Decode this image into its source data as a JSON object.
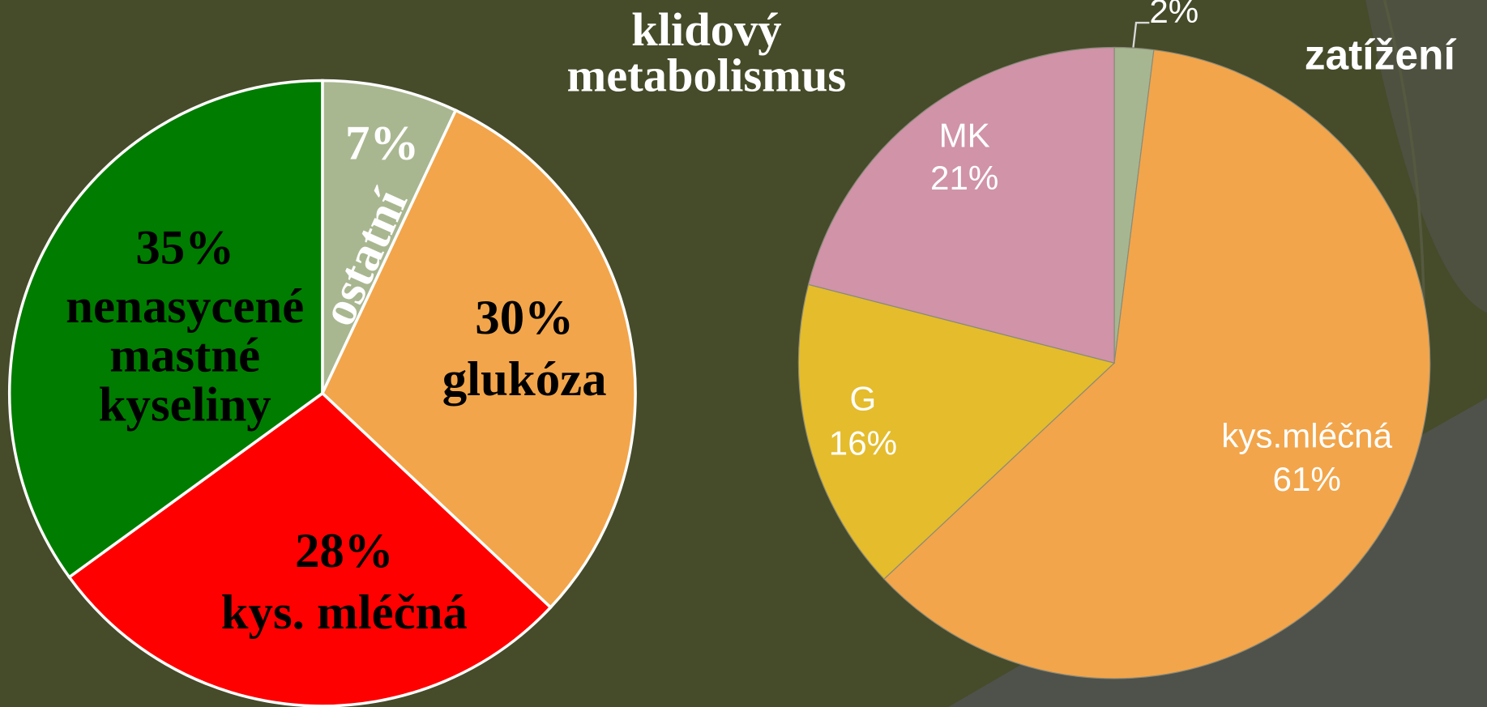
{
  "chart_data": [
    {
      "type": "pie",
      "title": "klidový metabolismus",
      "categories": [
        "ostatní",
        "glukóza",
        "kys. mléčná",
        "nenasycené mastné kyseliny"
      ],
      "values": [
        7,
        30,
        28,
        35
      ],
      "value_labels": [
        "7%",
        "30%",
        "28%",
        "35%"
      ],
      "colors": [
        "#a9b791",
        "#f2a54a",
        "#ff0000",
        "#007c00"
      ]
    },
    {
      "type": "pie",
      "title": "zatížení",
      "categories": [
        null,
        "kys.mléčná",
        "G",
        "MK"
      ],
      "values": [
        2,
        61,
        16,
        21
      ],
      "value_labels": [
        "2%",
        "61%",
        "16%",
        "21%"
      ],
      "colors": [
        "#a6b691",
        "#f2a54a",
        "#e4bc2c",
        "#d093a8"
      ]
    }
  ]
}
